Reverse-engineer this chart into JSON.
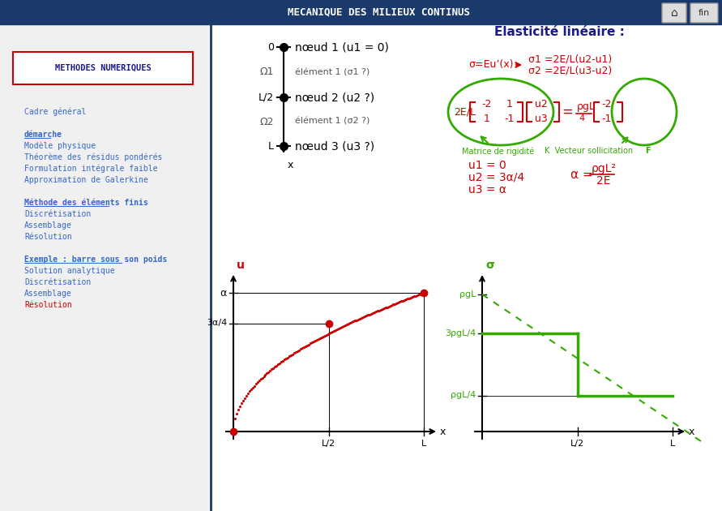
{
  "bg_color": "#ffffff",
  "header_bar_color": "#1a3a6b",
  "title_text": "MECANIQUE DES MILIEUX CONTINUS",
  "title_color": "#1a1a8c",
  "subtitle_text": "Elasticité linéaire :",
  "subtitle_color": "#1a1a8c",
  "left_box_text": "METHODES NUMERIQUES",
  "left_box_color": "#cc0000",
  "left_box_text_color": "#1a1a8c",
  "left_menu_items": [
    {
      "text": "Cadre général",
      "color": "#3366cc",
      "bold": false,
      "underline": false
    },
    {
      "text": "démarche",
      "color": "#3366cc",
      "bold": true,
      "underline": true
    },
    {
      "text": "Modèle physique",
      "color": "#3366cc",
      "bold": false,
      "underline": false
    },
    {
      "text": "Théorème des résidus pondérés",
      "color": "#3366cc",
      "bold": false,
      "underline": false
    },
    {
      "text": "Formulation intégrale faible",
      "color": "#3366cc",
      "bold": false,
      "underline": false
    },
    {
      "text": "Approximation de Galerkine",
      "color": "#3366cc",
      "bold": false,
      "underline": false
    },
    {
      "text": "Méthode des éléments finis",
      "color": "#3366cc",
      "bold": true,
      "underline": true
    },
    {
      "text": "Discrétisation",
      "color": "#3366cc",
      "bold": false,
      "underline": false
    },
    {
      "text": "Assemblage",
      "color": "#3366cc",
      "bold": false,
      "underline": false
    },
    {
      "text": "Résolution",
      "color": "#3366cc",
      "bold": false,
      "underline": false
    },
    {
      "text": "Exemple : barre sous son poids",
      "color": "#3366cc",
      "bold": true,
      "underline": true
    },
    {
      "text": "Solution analytique",
      "color": "#3366cc",
      "bold": false,
      "underline": false
    },
    {
      "text": "Discrétisation",
      "color": "#3366cc",
      "bold": false,
      "underline": false
    },
    {
      "text": "Assemblage",
      "color": "#3366cc",
      "bold": false,
      "underline": false
    },
    {
      "text": "Résolution",
      "color": "#cc0000",
      "bold": false,
      "underline": false
    }
  ],
  "red_color": "#cc0000",
  "green_color": "#33aa00",
  "matrix_color": "#cc0000",
  "sigma_formula_color": "#cc0000",
  "solution_color": "#cc0000",
  "green_label_color": "#33aa00"
}
